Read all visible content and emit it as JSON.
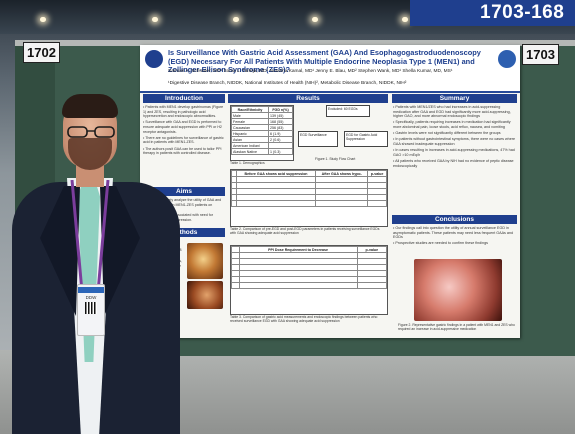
{
  "signage": {
    "booth_range": "1703-168",
    "board_left": "1702",
    "board_right": "1703"
  },
  "poster": {
    "title": "Is Surveillance With Gastric Acid Assessment (GAA) And Esophagogastroduodenoscopy (EGD) Necessary For All Patients With Multiple Endocrine Neoplasia Type 1 (MEN1) and Zollinger-Ellison Syndrome (ZES)?",
    "authors": "Samuel A. Schrader, MD¹ Sonia L. Taneja, MD¹ Natasha Kamal, MD¹ Jenny E. Blau, MD² Stephen Wank, MD¹ Shella Kumar, MD, MS¹",
    "affiliations": "¹Digestive Disease Branch, NIDDK, National Institutes of Health (NIH)², Metabolic Disease Branch, NIDDK, NIH²",
    "sections": {
      "introduction": "Introduction",
      "aims": "Aims",
      "methods": "Methods",
      "results": "Results",
      "summary": "Summary",
      "conclusions": "Conclusions"
    },
    "table1": {
      "headers": [
        "Race/Ethnicity",
        "FGD n(%)"
      ],
      "rows": [
        [
          "Male",
          "139 (45)"
        ],
        [
          "Female",
          "168 (55)"
        ],
        [
          "Caucasian",
          "256 (83)"
        ],
        [
          "Hispanic",
          "6 (1.9)"
        ],
        [
          "Asian",
          "2 (0.6)"
        ],
        [
          "American Indian/",
          ""
        ],
        [
          "Alaskan Native",
          "1 (0.3)"
        ]
      ],
      "caption": "Table 1. Demographics"
    },
    "figure1": {
      "box_top": "Excluded: 60 EGDs",
      "box_left": "EGD Surveillance",
      "box_right": "EGD for Gastric Acid Suppression",
      "caption": "Figure 1. Study Flow Chart"
    },
    "table2": {
      "headers": [
        "",
        "Before GAA shows acid suppression",
        "After GAA shows hypo-",
        "p-value"
      ],
      "caption": "Table 2. Comparison of pre-EGD and post-EGD parameters in patients receiving surveillance EGDs with GAA showing adequate acid suppression"
    },
    "table3": {
      "headers": [
        "",
        "PPI Dose Requirement to Decrease",
        "p-value"
      ],
      "caption": "Table 3. Comparison of gastric acid measurements and endoscopic findings between patients who received surveillance EGD with GAA showing adequate acid suppression"
    },
    "summary_items": [
      "Patients with MEN1/ZES who had increases in acid-suppressing medication after GAA and EGD had significantly more acid-suppressing, higher GAO, and more abnormal endoscopic findings",
      "Specifically, patients requiring increases in medication had significantly more abdominal pain, loose stools, acid reflux, nausea, and vomiting",
      "Gastrin levels were not significantly different between the groups",
      "In patients without gastrointestinal symptoms, there were no cases where GAA showed inadequate suppression",
      "In cases resulting in increases in acid-suppressing medications, 47% had GAO >10 mEq/h",
      "All patients who received GAA by NIH had no evidence of peptic disease endoscopically"
    ],
    "conclusion_items": [
      "Our findings call into question the utility of annual surveillance EGD in asymptomatic patients. These patients may need less frequent GAAs and EGDs",
      "Prospective studies are needed to confirm these findings"
    ],
    "figure2_caption": "Figure 2. Representative gastric findings in a patient with MEN1 and ZES who required an increase in acid-suppressive medication"
  },
  "badge": {
    "text": "DDW"
  }
}
